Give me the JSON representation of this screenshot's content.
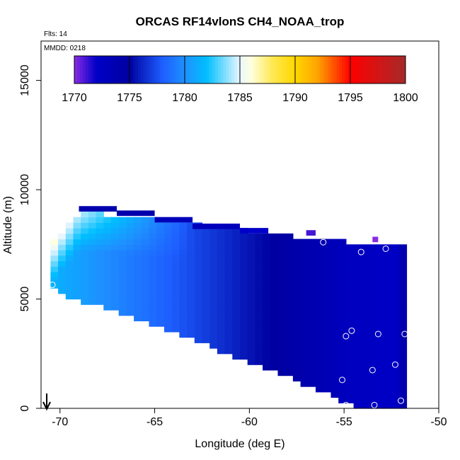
{
  "chart_data": {
    "type": "heatmap",
    "title": "ORCAS RF14vlonS CH4_NOAA_trop",
    "xlabel": "Longitude (deg E)",
    "ylabel": "Altitude (m)",
    "xlim": [
      -71,
      -50
    ],
    "ylim": [
      0,
      16800
    ],
    "x_ticks": [
      -70,
      -65,
      -60,
      -55,
      -50
    ],
    "y_ticks": [
      0,
      5000,
      10000,
      15000
    ],
    "annotations": {
      "flights": "Flts: 14",
      "date": "MMDD: 0218"
    },
    "colorbar": {
      "ticks": [
        1770,
        1775,
        1780,
        1785,
        1790,
        1795,
        1800
      ],
      "range": [
        1770,
        1800
      ],
      "stops": [
        {
          "v": 1770,
          "color": "#8a2be2"
        },
        {
          "v": 1772,
          "color": "#0000c8"
        },
        {
          "v": 1775,
          "color": "#0000a0"
        },
        {
          "v": 1778,
          "color": "#1e5fff"
        },
        {
          "v": 1780,
          "color": "#1e90ff"
        },
        {
          "v": 1782,
          "color": "#00bfff"
        },
        {
          "v": 1785,
          "color": "#e8f6ff"
        },
        {
          "v": 1786,
          "color": "#ffffe0"
        },
        {
          "v": 1788,
          "color": "#ffe850"
        },
        {
          "v": 1790,
          "color": "#ffd700"
        },
        {
          "v": 1792,
          "color": "#ffa500"
        },
        {
          "v": 1795,
          "color": "#ff0000"
        },
        {
          "v": 1800,
          "color": "#a52a2a"
        }
      ]
    },
    "curtain": {
      "columns": [
        {
          "lon": -70.5,
          "bottom": 5700,
          "top": 7300
        },
        {
          "lon": -70.0,
          "bottom": 5300,
          "top": 7900
        },
        {
          "lon": -69.0,
          "bottom": 5000,
          "top": 8800
        },
        {
          "lon": -68.0,
          "bottom": 4800,
          "top": 8800
        },
        {
          "lon": -67.0,
          "bottom": 4500,
          "top": 8700
        },
        {
          "lon": -66.0,
          "bottom": 4200,
          "top": 8600
        },
        {
          "lon": -65.0,
          "bottom": 3900,
          "top": 8500
        },
        {
          "lon": -64.0,
          "bottom": 3600,
          "top": 8400
        },
        {
          "lon": -63.0,
          "bottom": 3300,
          "top": 8300
        },
        {
          "lon": -62.0,
          "bottom": 2900,
          "top": 8200
        },
        {
          "lon": -61.0,
          "bottom": 2500,
          "top": 8100
        },
        {
          "lon": -60.0,
          "bottom": 2200,
          "top": 8000
        },
        {
          "lon": -59.0,
          "bottom": 1900,
          "top": 7900
        },
        {
          "lon": -58.0,
          "bottom": 1600,
          "top": 7800
        },
        {
          "lon": -57.0,
          "bottom": 1200,
          "top": 7700
        },
        {
          "lon": -56.0,
          "bottom": 800,
          "top": 7600
        },
        {
          "lon": -55.0,
          "bottom": 400,
          "top": 7500
        },
        {
          "lon": -54.0,
          "bottom": 100,
          "top": 7400
        },
        {
          "lon": -53.0,
          "bottom": 0,
          "top": 7400
        },
        {
          "lon": -52.0,
          "bottom": 0,
          "top": 7400
        },
        {
          "lon": -51.7,
          "bottom": 0,
          "top": 7400
        }
      ],
      "high_band": [
        {
          "lon_start": -69.0,
          "lon_end": -67.0,
          "bottom": 9000,
          "top": 9250,
          "value": 1774
        },
        {
          "lon_start": -67.0,
          "lon_end": -65.0,
          "bottom": 8800,
          "top": 9050,
          "value": 1774
        },
        {
          "lon_start": -65.0,
          "lon_end": -63.0,
          "bottom": 8500,
          "top": 8750,
          "value": 1773
        },
        {
          "lon_start": -63.0,
          "lon_end": -60.5,
          "bottom": 8200,
          "top": 8450,
          "value": 1773
        },
        {
          "lon_start": -60.5,
          "lon_end": -59.0,
          "bottom": 8000,
          "top": 8250,
          "value": 1772
        },
        {
          "lon_start": -57.0,
          "lon_end": -56.5,
          "bottom": 7900,
          "top": 8150,
          "value": 1771
        },
        {
          "lon_start": -53.5,
          "lon_end": -53.2,
          "bottom": 7600,
          "top": 7850,
          "value": 1770
        }
      ]
    },
    "points": [
      {
        "lon": -70.4,
        "alt": 5650
      },
      {
        "lon": -56.1,
        "alt": 7600
      },
      {
        "lon": -54.1,
        "alt": 7150
      },
      {
        "lon": -52.8,
        "alt": 7300
      },
      {
        "lon": -54.6,
        "alt": 3550
      },
      {
        "lon": -54.9,
        "alt": 3300
      },
      {
        "lon": -53.2,
        "alt": 3400
      },
      {
        "lon": -51.8,
        "alt": 3400
      },
      {
        "lon": -53.5,
        "alt": 1750
      },
      {
        "lon": -52.3,
        "alt": 2000
      },
      {
        "lon": -55.1,
        "alt": 1300
      },
      {
        "lon": -52.0,
        "alt": 350
      },
      {
        "lon": -54.9,
        "alt": 150
      },
      {
        "lon": -53.4,
        "alt": 150
      }
    ],
    "arrow": {
      "lon": -70.7
    }
  }
}
